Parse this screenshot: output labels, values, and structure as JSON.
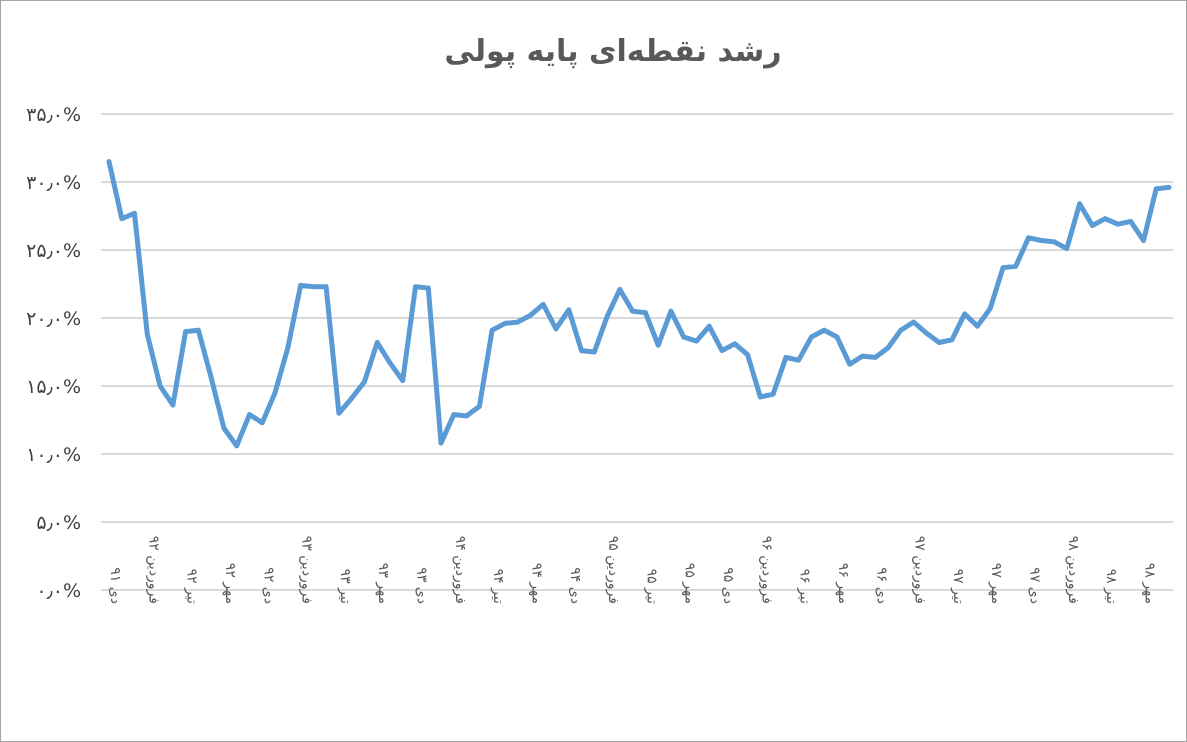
{
  "chart_data": {
    "type": "line",
    "title": "رشد نقطه‌ای پایه پولی",
    "xlabel": "",
    "ylabel": "",
    "ylim": [
      0,
      35
    ],
    "ytick_values": [
      0,
      5,
      10,
      15,
      20,
      25,
      30,
      35
    ],
    "ytick_labels": [
      "۰٫۰%",
      "۵٫۰%",
      "۱۰٫۰%",
      "۱۵٫۰%",
      "۲۰٫۰%",
      "۲۵٫۰%",
      "۳۰٫۰%",
      "۳۵٫۰%"
    ],
    "grid": true,
    "legend": "none",
    "color": "#5b9bd5",
    "x_labels": [
      "دی ۹۱",
      "فروردین ۹۲",
      "تیر ۹۲",
      "مهر ۹۲",
      "دی ۹۲",
      "فروردین ۹۳",
      "تیر ۹۳",
      "مهر ۹۳",
      "دی ۹۳",
      "فروردین ۹۴",
      "تیر ۹۴",
      "مهر ۹۴",
      "دی ۹۴",
      "فروردین ۹۵",
      "تیر ۹۵",
      "مهر ۹۵",
      "دی ۹۵",
      "فروردین ۹۶",
      "تیر ۹۶",
      "مهر ۹۶",
      "دی ۹۶",
      "فروردین ۹۷",
      "تیر ۹۷",
      "مهر ۹۷",
      "دی ۹۷",
      "فروردین ۹۸",
      "تیر ۹۸",
      "مهر ۹۸"
    ],
    "label_every": 3,
    "series": [
      {
        "values": [
          31.5,
          27.3,
          27.7,
          18.8,
          15.0,
          13.6,
          19.0,
          19.1,
          15.6,
          11.9,
          10.6,
          12.9,
          12.3,
          14.5,
          17.8,
          22.4,
          22.3,
          22.3,
          13.0,
          14.1,
          15.3,
          18.2,
          16.7,
          15.4,
          22.3,
          22.2,
          10.8,
          12.9,
          12.8,
          13.5,
          19.1,
          19.6,
          19.7,
          20.2,
          21.0,
          19.2,
          20.6,
          17.6,
          17.5,
          20.1,
          22.1,
          20.5,
          20.4,
          18.0,
          20.5,
          18.6,
          18.3,
          19.4,
          17.6,
          18.1,
          17.3,
          14.2,
          14.4,
          17.1,
          16.9,
          18.6,
          19.1,
          18.6,
          16.6,
          17.2,
          17.1,
          17.8,
          19.1,
          19.7,
          18.9,
          18.2,
          18.4,
          20.3,
          19.4,
          20.7,
          23.7,
          23.8,
          25.9,
          25.7,
          25.6,
          25.1,
          28.4,
          26.8,
          27.3,
          26.9,
          27.1,
          25.7,
          29.5,
          29.6
        ]
      }
    ]
  }
}
